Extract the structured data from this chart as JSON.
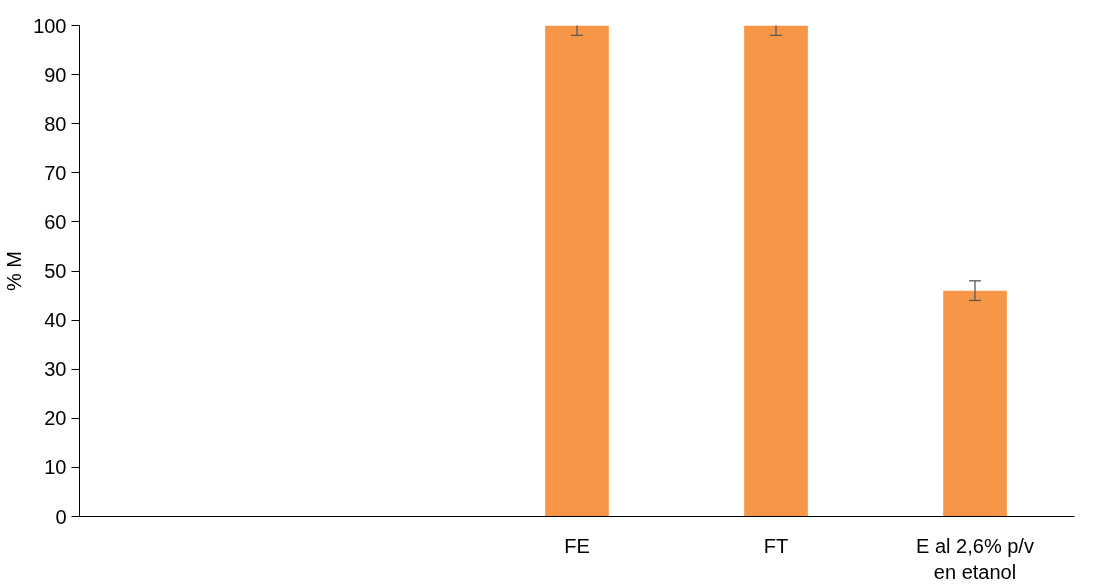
{
  "chart_data": {
    "type": "bar",
    "ylabel": "% M",
    "categories": [
      null,
      null,
      "FE",
      "FT",
      "E al 2,6% p/v en etanol"
    ],
    "values": [
      0,
      0,
      100,
      100,
      46
    ],
    "errors": [
      null,
      null,
      2,
      2,
      2
    ],
    "color": "#f79646",
    "ylim": [
      0,
      100
    ],
    "yticks": [
      0,
      10,
      20,
      30,
      40,
      50,
      60,
      70,
      80,
      90,
      100
    ],
    "grid": false
  }
}
